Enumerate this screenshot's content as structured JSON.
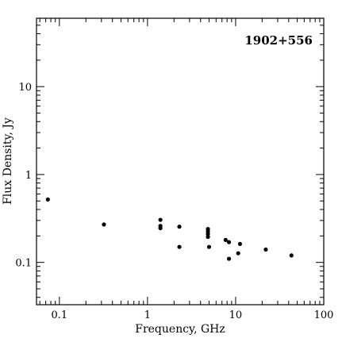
{
  "chart_data": {
    "type": "scatter",
    "title": "1902+556",
    "xlabel": "Frequency, GHz",
    "ylabel": "Flux Density, Jy",
    "x_scale": "log",
    "y_scale": "log",
    "xlim": [
      0.055,
      100
    ],
    "ylim": [
      0.033,
      60
    ],
    "x_tick_labels": [
      "0.1",
      "1",
      "10",
      "100"
    ],
    "x_ticks": [
      0.1,
      1,
      10,
      100
    ],
    "y_tick_labels": [
      "0.1",
      "1",
      "10"
    ],
    "y_ticks": [
      0.1,
      1,
      10
    ],
    "grid": false,
    "series": [
      {
        "points": [
          {
            "x": 0.074,
            "y": 0.52
          },
          {
            "x": 0.32,
            "y": 0.27
          },
          {
            "x": 1.4,
            "y": 0.305
          },
          {
            "x": 1.4,
            "y": 0.26
          },
          {
            "x": 1.4,
            "y": 0.245
          },
          {
            "x": 2.3,
            "y": 0.255
          },
          {
            "x": 2.3,
            "y": 0.15
          },
          {
            "x": 4.85,
            "y": 0.24
          },
          {
            "x": 4.85,
            "y": 0.225
          },
          {
            "x": 4.85,
            "y": 0.21
          },
          {
            "x": 4.85,
            "y": 0.195
          },
          {
            "x": 5.0,
            "y": 0.15
          },
          {
            "x": 7.7,
            "y": 0.18
          },
          {
            "x": 8.4,
            "y": 0.17
          },
          {
            "x": 8.4,
            "y": 0.11
          },
          {
            "x": 10.7,
            "y": 0.127
          },
          {
            "x": 11.2,
            "y": 0.162
          },
          {
            "x": 22,
            "y": 0.14
          },
          {
            "x": 43,
            "y": 0.12
          }
        ]
      }
    ],
    "colors": {
      "marker": "#000000",
      "axis": "#000000",
      "background": "#ffffff"
    }
  }
}
